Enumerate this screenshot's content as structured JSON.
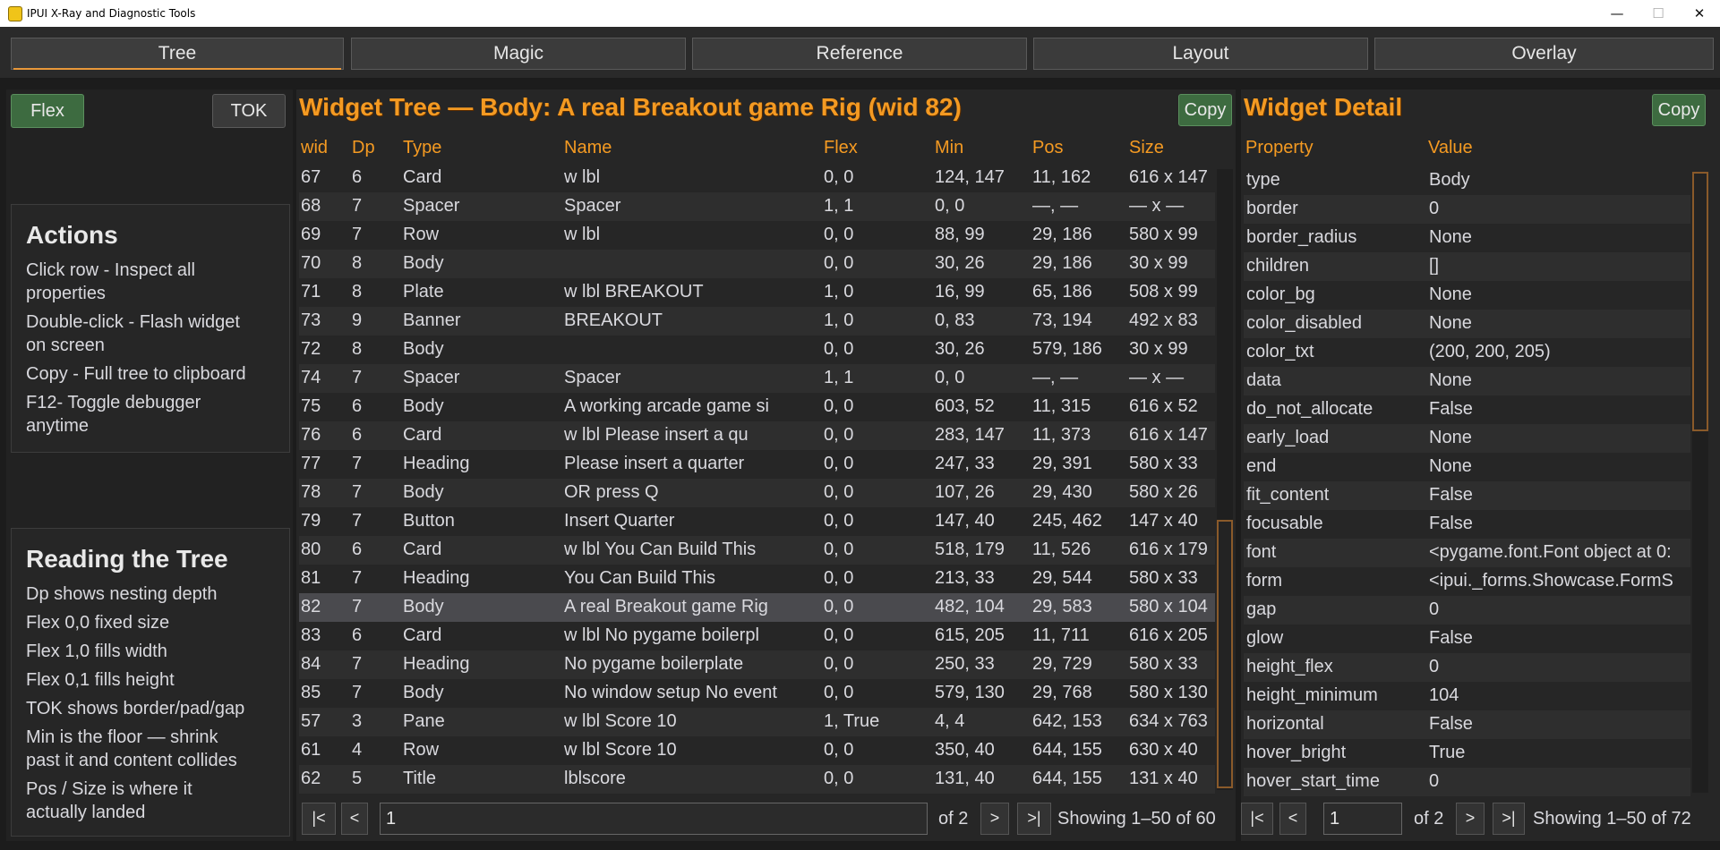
{
  "window": {
    "title": "IPUI X-Ray and Diagnostic Tools",
    "min": "—",
    "max": "☐",
    "close": "✕"
  },
  "tabs": [
    {
      "label": "Tree"
    },
    {
      "label": "Magic"
    },
    {
      "label": "Reference"
    },
    {
      "label": "Layout"
    },
    {
      "label": "Overlay"
    }
  ],
  "left": {
    "flex_button": "Flex",
    "tok_button": "TOK",
    "actions": {
      "title": "Actions",
      "lines": [
        "Click row - Inspect all",
        "properties",
        "Double-click - Flash widget",
        "on screen",
        "Copy - Full tree to clipboard",
        "F12- Toggle debugger",
        "anytime"
      ]
    },
    "reading": {
      "title": "Reading the Tree",
      "lines": [
        "Dp shows nesting depth",
        "Flex 0,0  fixed size",
        "Flex 1,0  fills width",
        "Flex 0,1  fills height",
        "TOK shows border/pad/gap",
        "Min is the floor — shrink",
        "past it and content collides",
        "Pos / Size is where it",
        "actually landed"
      ]
    }
  },
  "tree": {
    "title": "Widget Tree — Body: A real Breakout game Rig (wid 82)",
    "copy": "Copy",
    "columns": [
      "wid",
      "Dp",
      "Type",
      "Name",
      "Flex",
      "Min",
      "Pos",
      "Size"
    ],
    "rows": [
      [
        "67",
        "6",
        "Card",
        "w lbl",
        "0, 0",
        "124, 147",
        "11, 162",
        "616 x 147"
      ],
      [
        "68",
        "7",
        "Spacer",
        "Spacer",
        "1, 1",
        "0, 0",
        "—, —",
        "— x —"
      ],
      [
        "69",
        "7",
        "Row",
        "w lbl",
        "0, 0",
        "88, 99",
        "29, 186",
        "580 x 99"
      ],
      [
        "70",
        "8",
        "Body",
        "",
        "0, 0",
        "30, 26",
        "29, 186",
        "30 x 99"
      ],
      [
        "71",
        "8",
        "Plate",
        "w lbl BREAKOUT",
        "1, 0",
        "16, 99",
        "65, 186",
        "508 x 99"
      ],
      [
        "73",
        "9",
        "Banner",
        "BREAKOUT",
        "1, 0",
        "0, 83",
        "73, 194",
        "492 x 83"
      ],
      [
        "72",
        "8",
        "Body",
        "",
        "0, 0",
        "30, 26",
        "579, 186",
        "30 x 99"
      ],
      [
        "74",
        "7",
        "Spacer",
        "Spacer",
        "1, 1",
        "0, 0",
        "—, —",
        "— x —"
      ],
      [
        "75",
        "6",
        "Body",
        "A working arcade game si",
        "0, 0",
        "603, 52",
        "11, 315",
        "616 x 52"
      ],
      [
        "76",
        "6",
        "Card",
        "w lbl Please insert a qu",
        "0, 0",
        "283, 147",
        "11, 373",
        "616 x 147"
      ],
      [
        "77",
        "7",
        "Heading",
        "Please insert a quarter",
        "0, 0",
        "247, 33",
        "29, 391",
        "580 x 33"
      ],
      [
        "78",
        "7",
        "Body",
        "OR press Q",
        "0, 0",
        "107, 26",
        "29, 430",
        "580 x 26"
      ],
      [
        "79",
        "7",
        "Button",
        "Insert Quarter",
        "0, 0",
        "147, 40",
        "245, 462",
        "147 x 40"
      ],
      [
        "80",
        "6",
        "Card",
        "w lbl You Can Build This",
        "0, 0",
        "518, 179",
        "11, 526",
        "616 x 179"
      ],
      [
        "81",
        "7",
        "Heading",
        "You Can Build This",
        "0, 0",
        "213, 33",
        "29, 544",
        "580 x 33"
      ],
      [
        "82",
        "7",
        "Body",
        "A real Breakout game Rig",
        "0, 0",
        "482, 104",
        "29, 583",
        "580 x 104"
      ],
      [
        "83",
        "6",
        "Card",
        "w lbl No pygame boilerpl",
        "0, 0",
        "615, 205",
        "11, 711",
        "616 x 205"
      ],
      [
        "84",
        "7",
        "Heading",
        "No pygame boilerplate",
        "0, 0",
        "250, 33",
        "29, 729",
        "580 x 33"
      ],
      [
        "85",
        "7",
        "Body",
        "No window setup No event",
        "0, 0",
        "579, 130",
        "29, 768",
        "580 x 130"
      ],
      [
        "57",
        "3",
        "Pane",
        "w lbl Score 10",
        "1, True",
        "4, 4",
        "642, 153",
        "634 x 763"
      ],
      [
        "61",
        "4",
        "Row",
        "w lbl Score 10",
        "0, 0",
        "350, 40",
        "644, 155",
        "630 x 40"
      ],
      [
        "62",
        "5",
        "Title",
        "lblscore",
        "0, 0",
        "131, 40",
        "644, 155",
        "131 x 40"
      ]
    ],
    "selected_index": 15,
    "pager": {
      "first": "|<",
      "prev": "<",
      "page": "1",
      "of": "of 2",
      "next": ">",
      "last": ">|",
      "showing": "Showing 1–50 of 60"
    }
  },
  "detail": {
    "title": "Widget Detail",
    "copy": "Copy",
    "columns": [
      "Property",
      "Value"
    ],
    "rows": [
      [
        "type",
        "Body"
      ],
      [
        "border",
        "0"
      ],
      [
        "border_radius",
        "None"
      ],
      [
        "children",
        "[]"
      ],
      [
        "color_bg",
        "None"
      ],
      [
        "color_disabled",
        "None"
      ],
      [
        "color_txt",
        "(200, 200, 205)"
      ],
      [
        "data",
        "None"
      ],
      [
        "do_not_allocate",
        "False"
      ],
      [
        "early_load",
        "None"
      ],
      [
        "end",
        "None"
      ],
      [
        "fit_content",
        "False"
      ],
      [
        "focusable",
        "False"
      ],
      [
        "font",
        "<pygame.font.Font object at 0:"
      ],
      [
        "form",
        "<ipui._forms.Showcase.FormS"
      ],
      [
        "gap",
        "0"
      ],
      [
        "glow",
        "False"
      ],
      [
        "height_flex",
        "0"
      ],
      [
        "height_minimum",
        "104"
      ],
      [
        "horizontal",
        "False"
      ],
      [
        "hover_bright",
        "True"
      ],
      [
        "hover_start_time",
        "0"
      ]
    ],
    "pager": {
      "first": "|<",
      "prev": "<",
      "page": "1",
      "of": "of 2",
      "next": ">",
      "last": ">|",
      "showing": "Showing 1–50 of 72"
    }
  }
}
